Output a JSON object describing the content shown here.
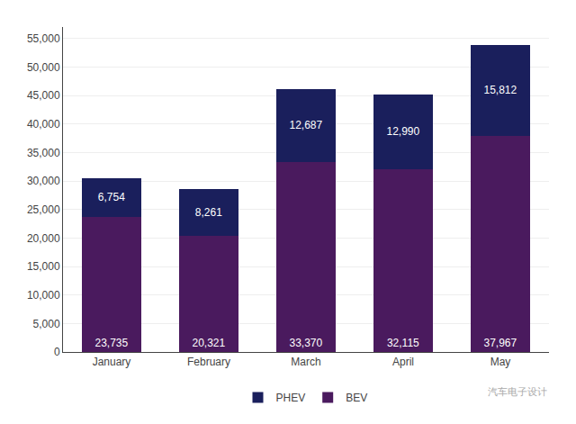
{
  "chart_data": {
    "type": "bar",
    "stacked": true,
    "categories": [
      "January",
      "February",
      "March",
      "April",
      "May"
    ],
    "series": [
      {
        "name": "BEV",
        "color": "#4a1a5e",
        "values": [
          23735,
          20321,
          33370,
          32115,
          37967
        ],
        "value_labels": [
          "23,735",
          "20,321",
          "33,370",
          "32,115",
          "37,967"
        ]
      },
      {
        "name": "PHEV",
        "color": "#1a1f5c",
        "values": [
          6754,
          8261,
          12687,
          12990,
          15812
        ],
        "value_labels": [
          "6,754",
          "8,261",
          "12,687",
          "12,990",
          "15,812"
        ]
      }
    ],
    "ylim": [
      0,
      57000
    ],
    "yticks": [
      0,
      {
        "value": 5000,
        "label": "5,000"
      },
      {
        "value": 10000,
        "label": "10,000"
      },
      {
        "value": 15000,
        "label": "15,000"
      },
      {
        "value": 20000,
        "label": "20,000"
      },
      {
        "value": 25000,
        "label": "25,000"
      },
      {
        "value": 30000,
        "label": "30,000"
      },
      {
        "value": 35000,
        "label": "35,000"
      },
      {
        "value": 40000,
        "label": "40,000"
      },
      {
        "value": 45000,
        "label": "45,000"
      },
      {
        "value": 50000,
        "label": "50,000"
      },
      {
        "value": 55000,
        "label": "55,000"
      }
    ],
    "grid": true,
    "legend": "bottom",
    "data_labels": true,
    "annotations": [
      "汽车电子设计"
    ]
  }
}
